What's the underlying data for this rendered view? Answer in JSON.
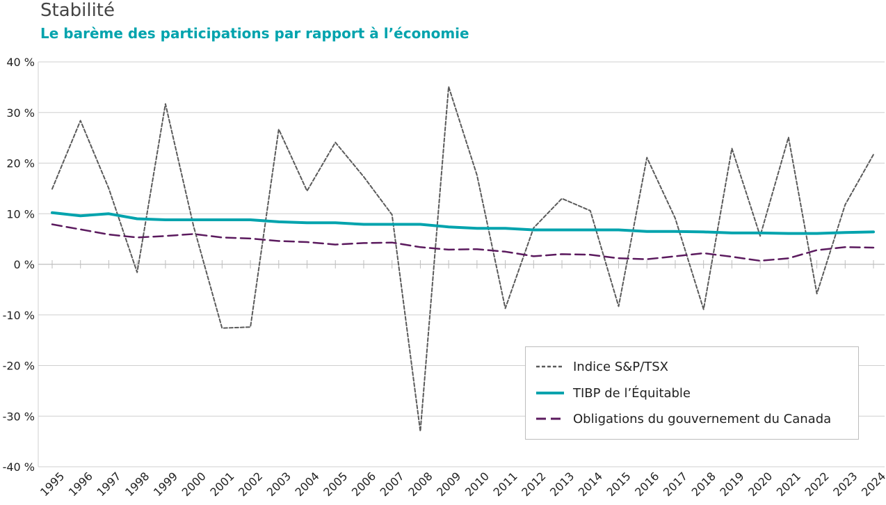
{
  "title": "Stabilité",
  "subtitle": "Le barème des participations par rapport à l’économie",
  "chart_data": {
    "type": "line",
    "title": "Stabilité",
    "subtitle": "Le barème des participations par rapport à l’économie",
    "xlabel": "",
    "ylabel": "",
    "ylim": [
      -40,
      40
    ],
    "y_ticks": [
      40,
      30,
      20,
      10,
      0,
      -10,
      -20,
      -30,
      -40
    ],
    "y_tick_labels": [
      "40 %",
      "30 %",
      "20 %",
      "10 %",
      "0 %",
      "-10 %",
      "-20 %",
      "-30 %",
      "-40 %"
    ],
    "grid": true,
    "legend_position": "bottom-right",
    "categories": [
      "1995",
      "1996",
      "1997",
      "1998",
      "1999",
      "2000",
      "2001",
      "2002",
      "2003",
      "2004",
      "2005",
      "2006",
      "2007",
      "2008",
      "2009",
      "2010",
      "2011",
      "2012",
      "2013",
      "2014",
      "2015",
      "2016",
      "2017",
      "2018",
      "2019",
      "2020",
      "2021",
      "2022",
      "2023",
      "2024"
    ],
    "series": [
      {
        "name": "Indice S&P/TSX",
        "color": "#5a5a5a",
        "style": "dotted",
        "values": [
          14.9,
          28.4,
          15.0,
          -1.6,
          31.7,
          7.4,
          -12.6,
          -12.4,
          26.7,
          14.5,
          24.1,
          17.3,
          9.8,
          -33.0,
          35.1,
          17.6,
          -8.7,
          7.2,
          13.0,
          10.6,
          -8.3,
          21.1,
          9.1,
          -8.9,
          22.9,
          5.6,
          25.1,
          -5.8,
          11.8,
          21.7
        ]
      },
      {
        "name": "TIBP de l’Équitable",
        "color": "#00A3AD",
        "style": "solid",
        "values": [
          10.2,
          9.6,
          10.0,
          9.0,
          8.8,
          8.8,
          8.8,
          8.8,
          8.4,
          8.2,
          8.2,
          7.9,
          7.9,
          7.9,
          7.4,
          7.1,
          7.1,
          6.8,
          6.8,
          6.8,
          6.8,
          6.5,
          6.5,
          6.4,
          6.2,
          6.2,
          6.1,
          6.1,
          6.3,
          6.4
        ]
      },
      {
        "name": "Obligations du gouvernement du Canada",
        "color": "#5B1A5E",
        "style": "dashed",
        "values": [
          7.9,
          6.9,
          5.9,
          5.3,
          5.6,
          6.0,
          5.3,
          5.1,
          4.6,
          4.4,
          3.9,
          4.2,
          4.3,
          3.4,
          2.9,
          3.0,
          2.5,
          1.6,
          2.0,
          1.9,
          1.2,
          1.0,
          1.6,
          2.2,
          1.5,
          0.7,
          1.2,
          2.8,
          3.4,
          3.3
        ]
      }
    ]
  }
}
